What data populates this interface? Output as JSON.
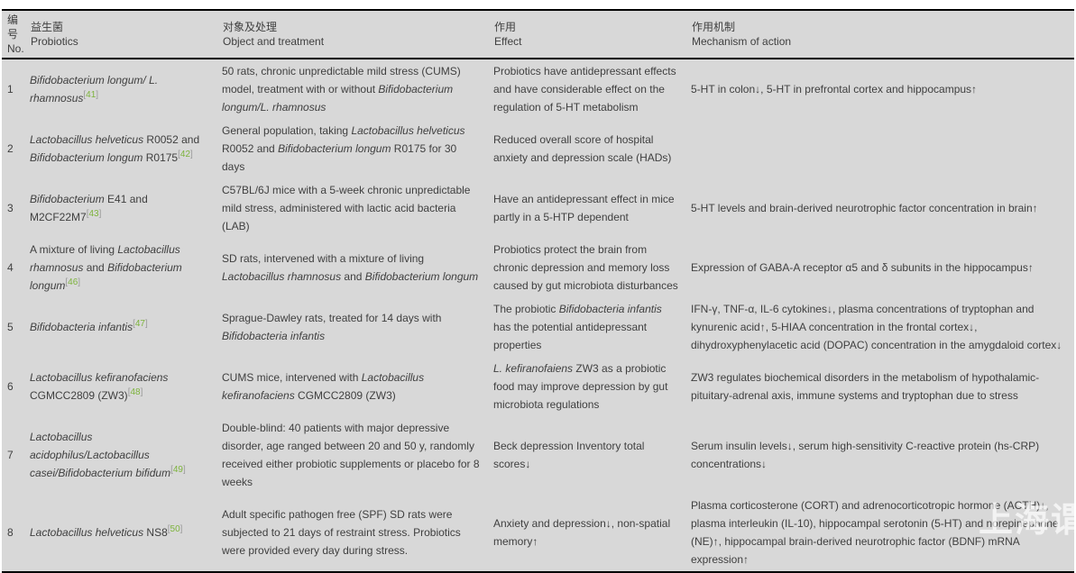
{
  "watermark": "上海谓",
  "colors": {
    "table_background": "#d8d8d8",
    "text": "#3f3f3f",
    "reference_link_green": "#7db33c",
    "rule_black": "#000000"
  },
  "table": {
    "header": [
      {
        "zh": "编号",
        "en": "No."
      },
      {
        "zh": "益生菌",
        "en": "Probiotics"
      },
      {
        "zh": "对象及处理",
        "en": "Object and treatment"
      },
      {
        "zh": "作用",
        "en": "Effect"
      },
      {
        "zh": "作用机制",
        "en": "Mechanism of action"
      }
    ],
    "rows": [
      {
        "no": "1",
        "probiotics": [
          {
            "t": "Bifidobacterium longum/ L. rhamnosus",
            "i": true
          },
          {
            "ref": "41"
          }
        ],
        "object": [
          {
            "t": "50 rats, chronic unpredictable mild stress (CUMS) model, treatment with or without "
          },
          {
            "t": "Bifidobacterium longum/L. rhamnosus",
            "i": true
          }
        ],
        "effect": [
          {
            "t": "Probiotics have antidepressant effects and have considerable effect on the regulation of 5-HT metabolism"
          }
        ],
        "mechanism": [
          {
            "t": "5-HT in colon↓, 5-HT in prefrontal cortex and hippocampus↑"
          }
        ]
      },
      {
        "no": "2",
        "probiotics": [
          {
            "t": "Lactobacillus helveticus",
            "i": true
          },
          {
            "t": " R0052 and "
          },
          {
            "t": "Bifidobacterium longum",
            "i": true
          },
          {
            "t": " R0175"
          },
          {
            "ref": "42"
          }
        ],
        "object": [
          {
            "t": "General population, taking "
          },
          {
            "t": "Lactobacillus helveticus",
            "i": true
          },
          {
            "t": " R0052 and "
          },
          {
            "t": "Bifidobacterium longum",
            "i": true
          },
          {
            "t": " R0175 for 30 days"
          }
        ],
        "effect": [
          {
            "t": "Reduced overall score of hospital anxiety and depression scale (HADs)"
          }
        ],
        "mechanism": []
      },
      {
        "no": "3",
        "probiotics": [
          {
            "t": "Bifidobacterium",
            "i": true
          },
          {
            "t": " E41 and M2CF22M7"
          },
          {
            "ref": "43"
          }
        ],
        "object": [
          {
            "t": "C57BL/6J mice with a 5-week chronic unpredictable mild stress, administered with lactic acid bacteria (LAB)"
          }
        ],
        "effect": [
          {
            "t": "Have an antidepressant effect in mice partly in a 5-HTP dependent"
          }
        ],
        "mechanism": [
          {
            "t": "5-HT levels and brain-derived neurotrophic factor concentration in brain↑"
          }
        ]
      },
      {
        "no": "4",
        "probiotics": [
          {
            "t": "A mixture of living "
          },
          {
            "t": "Lactobacillus rhamnosus",
            "i": true
          },
          {
            "t": " and "
          },
          {
            "t": "Bifidobacterium longum",
            "i": true
          },
          {
            "ref": "46"
          }
        ],
        "object": [
          {
            "t": "SD rats, intervened with a mixture of living "
          },
          {
            "t": "Lactobacillus rhamnosus",
            "i": true
          },
          {
            "t": " and "
          },
          {
            "t": "Bifidobacterium longum",
            "i": true
          }
        ],
        "effect": [
          {
            "t": "Probiotics protect the brain from chronic depression and memory loss caused by gut microbiota disturbances"
          }
        ],
        "mechanism": [
          {
            "t": "Expression of GABA-A receptor α5 and δ subunits in the hippocampus↑"
          }
        ]
      },
      {
        "no": "5",
        "probiotics": [
          {
            "t": "Bifidobacteria infantis",
            "i": true
          },
          {
            "ref": "47"
          }
        ],
        "object": [
          {
            "t": "Sprague-Dawley rats, treated for 14 days with "
          },
          {
            "t": "Bifidobacteria infantis",
            "i": true
          }
        ],
        "effect": [
          {
            "t": "The probiotic "
          },
          {
            "t": "Bifidobacteria infantis",
            "i": true
          },
          {
            "t": " has the potential antidepressant properties"
          }
        ],
        "mechanism": [
          {
            "t": "IFN-γ, TNF-α, IL-6 cytokines↓, plasma concentrations of tryptophan and kynurenic acid↑, 5-HIAA concentration in the frontal cortex↓, dihydroxyphenylacetic acid (DOPAC) concentration in the amygdaloid cortex↓"
          }
        ]
      },
      {
        "no": "6",
        "probiotics": [
          {
            "t": "Lactobacillus kefiranofaciens",
            "i": true
          },
          {
            "t": " CGMCC2809 (ZW3)"
          },
          {
            "ref": "48"
          }
        ],
        "object": [
          {
            "t": "CUMS mice, intervened with "
          },
          {
            "t": "Lactobacillus kefiranofaciens",
            "i": true
          },
          {
            "t": " CGMCC2809 (ZW3)"
          }
        ],
        "effect": [
          {
            "t": "L. kefiranofaiens",
            "i": true
          },
          {
            "t": " ZW3 as a probiotic food may improve depression by gut microbiota regulations"
          }
        ],
        "mechanism": [
          {
            "t": "ZW3 regulates biochemical disorders in the metabolism of hypothalamic-pituitary-adrenal axis, immune systems and tryptophan due to stress"
          }
        ]
      },
      {
        "no": "7",
        "probiotics": [
          {
            "t": "Lactobacillus acidophilus/Lactobacillus casei/Bifidobacterium bifidum",
            "i": true
          },
          {
            "ref": "49"
          }
        ],
        "object": [
          {
            "t": "Double-blind: 40 patients with major depressive disorder, age ranged between 20 and 50 y, randomly received either probiotic supplements or placebo for 8 weeks"
          }
        ],
        "effect": [
          {
            "t": "Beck depression Inventory total scores↓"
          }
        ],
        "mechanism": [
          {
            "t": "Serum insulin levels↓, serum high-sensitivity C-reactive protein (hs-CRP) concentrations↓"
          }
        ]
      },
      {
        "no": "8",
        "probiotics": [
          {
            "t": "Lactobacillus helveticus",
            "i": true
          },
          {
            "t": " NS8"
          },
          {
            "ref": "50"
          }
        ],
        "object": [
          {
            "t": "Adult specific pathogen free (SPF) SD rats were subjected to 21 days of restraint stress. Probiotics were provided every day during stress."
          }
        ],
        "effect": [
          {
            "t": "Anxiety and depression↓, non-spatial memory↑"
          }
        ],
        "mechanism": [
          {
            "t": "Plasma corticosterone (CORT) and adrenocorticotropic hormone (ACTH)↓, plasma interleukin (IL-10), hippocampal serotonin (5-HT) and norepinephrine (NE)↑, hippocampal brain-derived neurotrophic factor (BDNF) mRNA expression↑"
          }
        ]
      }
    ]
  }
}
